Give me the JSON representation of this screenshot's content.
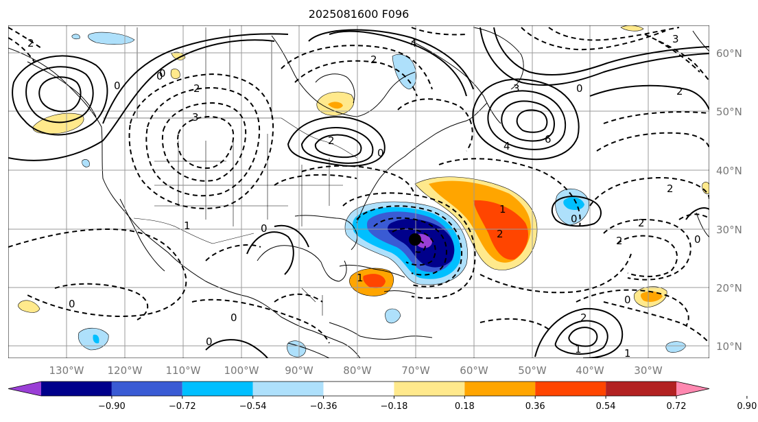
{
  "title": "2025081600 F096",
  "lon_labels": [
    "130°W",
    "120°W",
    "110°W",
    "100°W",
    "90°W",
    "80°W",
    "70°W",
    "60°W",
    "50°W",
    "40°W",
    "30°W"
  ],
  "lat_labels": [
    "60°N",
    "50°N",
    "40°N",
    "30°N",
    "20°N",
    "10°N"
  ],
  "colorbar": {
    "colors": [
      "#9a3fd6",
      "#00008b",
      "#3a5bd4",
      "#00bfff",
      "#aee0fb",
      "#ffffff",
      "#ffe98c",
      "#ffa500",
      "#ff4500",
      "#b22222",
      "#ff88b0"
    ],
    "ticks": [
      "−0.90",
      "−0.72",
      "−0.54",
      "−0.36",
      "−0.18",
      "0.18",
      "0.36",
      "0.54",
      "0.72",
      "0.90"
    ]
  },
  "contour_labels": {
    "pos": [
      "2",
      "4",
      "6",
      "0",
      "2",
      "3",
      "2",
      "4",
      "2",
      "1",
      "3",
      "0",
      "2",
      "1",
      "1"
    ],
    "neg": [
      "2",
      "3",
      "0",
      "1",
      "0",
      "0",
      "2",
      "1",
      "2",
      "2",
      "2",
      "3",
      "0",
      "1"
    ]
  },
  "storm_center_color": "#000000"
}
